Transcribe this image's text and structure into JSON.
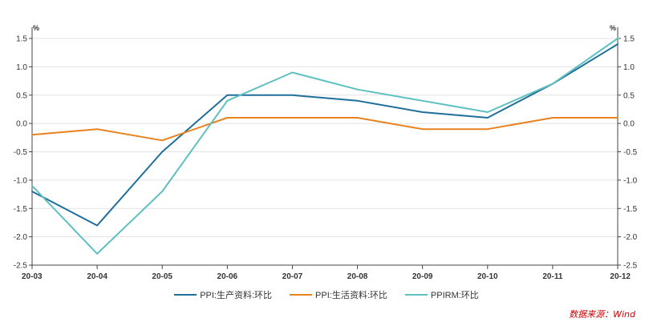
{
  "chart_data": {
    "type": "line",
    "title": "",
    "xlabel": "",
    "ylabel": "%",
    "y2label": "%",
    "ylim": [
      -2.5,
      1.5
    ],
    "yticks": [
      "1.5",
      "1.0",
      "0.5",
      "0.0",
      "-0.5",
      "-1.0",
      "-1.5",
      "-2.0",
      "-2.5"
    ],
    "ytick_values": [
      1.5,
      1.0,
      0.5,
      0.0,
      -0.5,
      -1.0,
      -1.5,
      -2.0,
      -2.5
    ],
    "categories": [
      "20-03",
      "20-04",
      "20-05",
      "20-06",
      "20-07",
      "20-08",
      "20-09",
      "20-10",
      "20-11",
      "20-12"
    ],
    "series": [
      {
        "name": "PPI:生产资料:环比",
        "color": "#1f6f9a",
        "values": [
          -1.2,
          -1.8,
          -0.5,
          0.5,
          0.5,
          0.4,
          0.2,
          0.1,
          0.7,
          1.4
        ]
      },
      {
        "name": "PPI:生活资料:环比",
        "color": "#e8821e",
        "values": [
          -0.2,
          -0.1,
          -0.3,
          0.1,
          0.1,
          0.1,
          -0.1,
          -0.1,
          0.1,
          0.1
        ]
      },
      {
        "name": "PPIRM:环比",
        "color": "#5ec0c0",
        "values": [
          -1.1,
          -2.3,
          -1.2,
          0.4,
          0.9,
          0.6,
          0.4,
          0.2,
          0.7,
          1.5
        ]
      }
    ]
  },
  "source": "数据来源：Wind"
}
